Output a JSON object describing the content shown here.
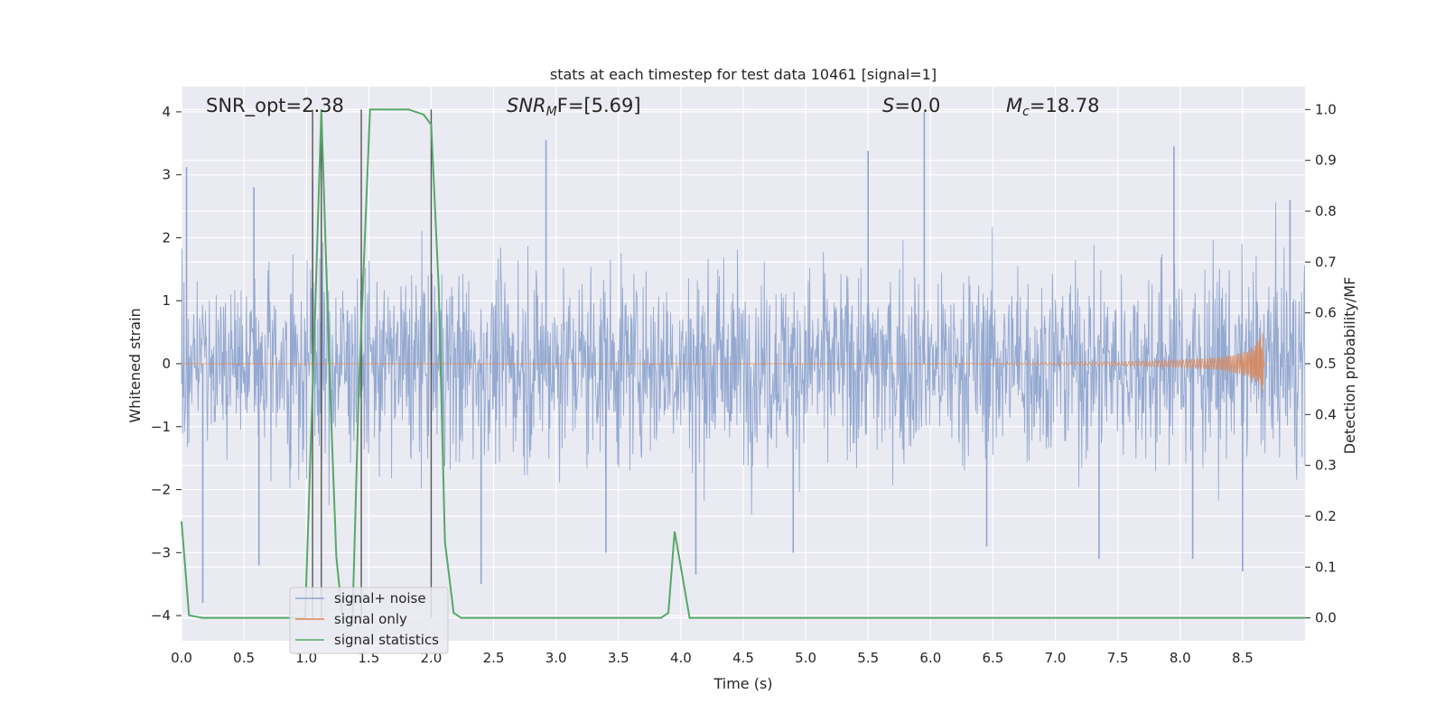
{
  "chart_data": {
    "type": "line",
    "title": "stats at each timestep for test data 10461 [signal=1]",
    "xlabel": "Time (s)",
    "ylabel": "Whitened strain",
    "ylabel_right": "Detection probability/MF",
    "xlim": [
      0,
      9
    ],
    "ylim": [
      -4.4,
      4.4
    ],
    "ylim_right": [
      -0.045,
      1.045
    ],
    "grid": true,
    "x_ticks": [
      "0.0",
      "0.5",
      "1.0",
      "1.5",
      "2.0",
      "2.5",
      "3.0",
      "3.5",
      "4.0",
      "4.5",
      "5.0",
      "5.5",
      "6.0",
      "6.5",
      "7.0",
      "7.5",
      "8.0",
      "8.5"
    ],
    "y_ticks": [
      "4",
      "3",
      "2",
      "1",
      "0",
      "−1",
      "−2",
      "−3",
      "−4"
    ],
    "y_ticks_right": [
      "1.0",
      "0.9",
      "0.8",
      "0.7",
      "0.6",
      "0.5",
      "0.4",
      "0.3",
      "0.2",
      "0.1",
      "0.0"
    ],
    "annotations": [
      {
        "label": "SNR_opt=2.38"
      },
      {
        "label": "SNR",
        "sub": "M",
        "rest": "F=[5.69]"
      },
      {
        "label": "S",
        "rest": "=0.0"
      },
      {
        "label": "M",
        "sub": "c",
        "rest": "=18.78"
      }
    ],
    "legend": {
      "placement": "lower-left",
      "entries": [
        "signal+ noise",
        "signal only",
        "signal statistics"
      ]
    },
    "series": [
      {
        "name": "signal+ noise",
        "axis": "left",
        "color": "#8fa5cf",
        "spike_peaks": [
          {
            "x": 0.04,
            "y": 3.12
          },
          {
            "x": 0.17,
            "y": -3.8
          },
          {
            "x": 0.58,
            "y": 2.8
          },
          {
            "x": 0.62,
            "y": -3.2
          },
          {
            "x": 1.05,
            "y": 2.9
          },
          {
            "x": 2.4,
            "y": -3.5
          },
          {
            "x": 2.92,
            "y": 3.55
          },
          {
            "x": 3.4,
            "y": -3.0
          },
          {
            "x": 4.12,
            "y": -3.35
          },
          {
            "x": 4.9,
            "y": -3.0
          },
          {
            "x": 5.5,
            "y": 3.38
          },
          {
            "x": 5.95,
            "y": 4.0
          },
          {
            "x": 6.45,
            "y": -2.9
          },
          {
            "x": 7.35,
            "y": -3.1
          },
          {
            "x": 7.95,
            "y": 3.45
          },
          {
            "x": 8.1,
            "y": -3.1
          },
          {
            "x": 8.5,
            "y": -3.3
          },
          {
            "x": 8.88,
            "y": 2.6
          }
        ],
        "typical_envelope": [
          -2.0,
          2.0
        ]
      },
      {
        "name": "signal only",
        "axis": "left",
        "color": "#dd8452",
        "x": [
          0,
          5.0,
          6.5,
          7.5,
          8.0,
          8.3,
          8.5,
          8.6,
          8.66,
          8.68
        ],
        "amplitude": [
          0.0,
          0.0,
          0.01,
          0.03,
          0.06,
          0.1,
          0.18,
          0.3,
          0.5,
          0.0
        ]
      },
      {
        "name": "signal statistics",
        "axis": "right",
        "color": "#55a868",
        "x": [
          0.0,
          0.06,
          0.17,
          0.99,
          1.07,
          1.12,
          1.19,
          1.24,
          1.29,
          1.37,
          1.42,
          1.51,
          1.66,
          1.82,
          1.94,
          2.0,
          2.06,
          2.11,
          2.18,
          2.24,
          3.84,
          3.9,
          3.95,
          4.0,
          4.07,
          9.0
        ],
        "values": [
          0.19,
          0.005,
          0.0,
          0.0,
          0.6,
          1.0,
          0.45,
          0.12,
          0.0,
          0.0,
          0.45,
          1.0,
          1.0,
          1.0,
          0.99,
          0.97,
          0.65,
          0.15,
          0.01,
          0.0,
          0.0,
          0.01,
          0.17,
          0.1,
          0.0,
          0.0
        ]
      },
      {
        "name": "vertical markers",
        "axis": "right",
        "color": "#555555",
        "x": [
          1.05,
          1.12,
          1.44,
          2.0
        ],
        "top": 1.0,
        "bottom": 0.0
      }
    ]
  }
}
